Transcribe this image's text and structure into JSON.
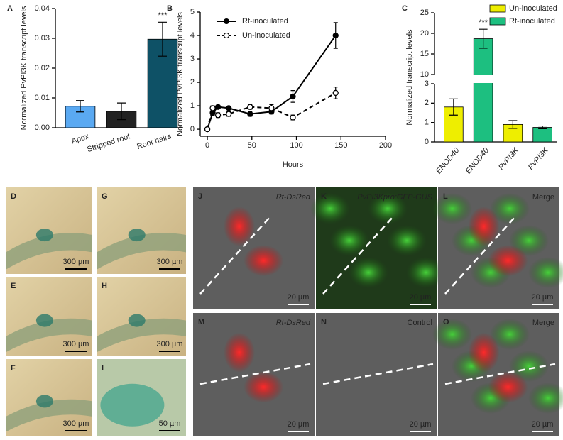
{
  "chart_data": [
    {
      "type": "bar",
      "panel": "A",
      "ylabel": "Normalized PvPI3K transcript levels",
      "categories": [
        "Apex",
        "Stripped root",
        "Root hairs"
      ],
      "values": [
        0.0072,
        0.0055,
        0.0297
      ],
      "errors": [
        0.0019,
        0.0028,
        0.0057
      ],
      "colors": [
        "#5aa9f2",
        "#222222",
        "#0e5166"
      ],
      "value_annotations": [
        null,
        null,
        "***"
      ],
      "ylim": [
        0,
        0.04
      ],
      "yticks": [
        {
          "value": 0,
          "label": "0.00"
        },
        0.01,
        0.02,
        0.03,
        0.04
      ]
    },
    {
      "type": "line",
      "panel": "B",
      "xlabel": "Hours",
      "ylabel": "Normalized PvPI3K transcript levels",
      "x": [
        0,
        6,
        12,
        24,
        48,
        72,
        96,
        144
      ],
      "series": [
        {
          "name": "Rt-inoculated",
          "color": "#000000",
          "dashed": false,
          "marker": "filled",
          "values": [
            0,
            0.7,
            0.95,
            0.9,
            0.65,
            0.75,
            1.4,
            4.0
          ],
          "errors": [
            0,
            0.1,
            0.05,
            0.05,
            0.1,
            0.1,
            0.25,
            0.55
          ]
        },
        {
          "name": "Un-inoculated",
          "color": "#000000",
          "dashed": true,
          "marker": "open",
          "values": [
            0,
            0.9,
            0.6,
            0.65,
            0.95,
            0.9,
            0.5,
            1.55
          ],
          "errors": [
            0,
            0.1,
            0.1,
            0.1,
            0.1,
            0.15,
            0.1,
            0.25
          ]
        }
      ],
      "xlim": [
        -8,
        200
      ],
      "xticks": [
        0,
        50,
        100,
        150,
        200
      ],
      "ylim": [
        -0.3,
        5
      ],
      "yticks": [
        0,
        1,
        2,
        3,
        4,
        5
      ],
      "legend": "upper left"
    },
    {
      "type": "bar",
      "panel": "C",
      "ylabel": "Normalized transcript levels",
      "categories": [
        "ENOD40",
        "ENOD40",
        "PvPI3K",
        "PvPI3K"
      ],
      "series": [
        {
          "name": "Un-inoculated",
          "color": "#eeee00",
          "values": [
            1.8,
            null,
            0.9,
            null
          ],
          "errors": [
            0.42,
            null,
            0.2,
            null
          ]
        },
        {
          "name": "Rt-inoculated",
          "color": "#1dbf80",
          "values": [
            null,
            18.7,
            null,
            0.75
          ],
          "errors": [
            null,
            2.3,
            null,
            0.07
          ]
        }
      ],
      "value_annotations": [
        null,
        "***",
        null,
        null
      ],
      "ylim": [
        0,
        25
      ],
      "axis_break": [
        3,
        10
      ],
      "yticks": [
        0,
        1,
        2,
        3,
        10,
        15,
        20,
        25
      ],
      "legend": "upper right"
    }
  ],
  "image_panels": [
    {
      "label": "D",
      "scale_bar": "300 µm"
    },
    {
      "label": "G",
      "scale_bar": "300 µm"
    },
    {
      "label": "E",
      "scale_bar": "300 µm"
    },
    {
      "label": "H",
      "scale_bar": "300 µm"
    },
    {
      "label": "F",
      "scale_bar": "300 µm"
    },
    {
      "label": "I",
      "scale_bar": "50 µm"
    },
    {
      "label": "J",
      "caption": "Rt-DsRed",
      "scale_bar": "20 µm"
    },
    {
      "label": "K",
      "caption": "PvPI3Kpro:GFP-GUS",
      "scale_bar": "20 µm"
    },
    {
      "label": "L",
      "caption": "Merge",
      "scale_bar": "20 µm"
    },
    {
      "label": "M",
      "caption": "Rt-DsRed",
      "scale_bar": "20 µm"
    },
    {
      "label": "N",
      "caption": "Control",
      "scale_bar": "20 µm"
    },
    {
      "label": "O",
      "caption": "Merge",
      "scale_bar": "20 µm"
    }
  ]
}
